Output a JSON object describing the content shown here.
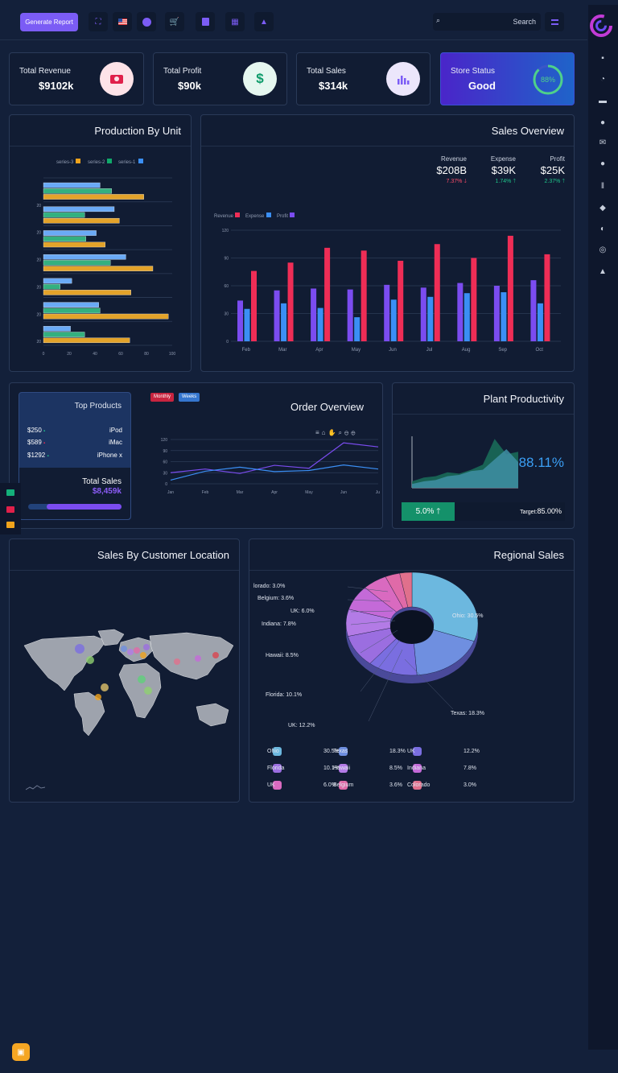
{
  "topbar": {
    "generate_label": "Generate Report",
    "search_placeholder": "Search",
    "icons": [
      "fullscreen-icon",
      "us-flag-icon",
      "chat-icon",
      "cart-icon",
      "file-icon",
      "apps-icon",
      "bell-icon"
    ]
  },
  "sidebar_icons": [
    "dashboard-icon",
    "pie-icon",
    "wallet-icon",
    "user-icon",
    "mail-icon",
    "group-icon",
    "library-icon",
    "box-icon",
    "rocket-icon",
    "lock-icon",
    "alert-icon"
  ],
  "stats": [
    {
      "label": "Total Revenue",
      "value": "$9102k",
      "icon": "camera-icon"
    },
    {
      "label": "Total Profit",
      "value": "$90k",
      "icon": "dollar-icon",
      "glyph": "$"
    },
    {
      "label": "Total Sales",
      "value": "$314k",
      "icon": "bar-chart-icon"
    },
    {
      "label": "Store Status",
      "value": "Good",
      "progress_label": "88%",
      "progress": 0.88
    }
  ],
  "production": {
    "title": "Production By Unit",
    "legend": [
      "series-3",
      "series-2",
      "series-1"
    ],
    "y_labels": [
      "20",
      "20",
      "20",
      "20",
      "20",
      "20"
    ]
  },
  "overview": {
    "title": "Sales Overview",
    "metrics": [
      {
        "label": "Revenue",
        "value": "$208B",
        "change": "7.37%",
        "dir": "down"
      },
      {
        "label": "Expense",
        "value": "$39K",
        "change": "1.74%",
        "dir": "up"
      },
      {
        "label": "Profit",
        "value": "$25K",
        "change": "2.37%",
        "dir": "up"
      }
    ],
    "legend": [
      "Revenue",
      "Expense",
      "Profit"
    ]
  },
  "top_products": {
    "title": "Top Products",
    "items": [
      {
        "price": "$250",
        "name": "iPod"
      },
      {
        "price": "$589",
        "name": "iMac"
      },
      {
        "price": "$1292",
        "name": "iPhone x"
      }
    ],
    "total_label": "Total Sales",
    "total_value": "$8,459k",
    "progress": 0.6
  },
  "order_overview": {
    "title": "Order Overview",
    "tabs": [
      "Monthly",
      "Weeks"
    ]
  },
  "plant": {
    "title": "Plant Productivity",
    "value": "88.11%",
    "badge": "5.0%",
    "target_label": "Target:",
    "target_value": "85.00%"
  },
  "location": {
    "title": "Sales By Customer Location"
  },
  "regional": {
    "title": "Regional Sales",
    "labels": [
      {
        "text": "lorado: 3.0%"
      },
      {
        "text": "Belgium: 3.6%"
      },
      {
        "text": "UK: 6.0%"
      },
      {
        "text": "Indiana: 7.8%"
      },
      {
        "text": "Hawaii: 8.5%"
      },
      {
        "text": "Florida: 10.1%"
      },
      {
        "text": "UK: 12.2%"
      },
      {
        "text": "Texas: 18.3%"
      },
      {
        "text": "Ohio: 30.5%"
      }
    ],
    "legend": [
      {
        "name": "Ohio",
        "value": "30.5%",
        "color": "#6cb8df"
      },
      {
        "name": "Texas",
        "value": "18.3%",
        "color": "#6f8fe0"
      },
      {
        "name": "UK",
        "value": "12.2%",
        "color": "#7a6ee0"
      },
      {
        "name": "Florida",
        "value": "10.1%",
        "color": "#9b6ee0"
      },
      {
        "name": "Hawaii",
        "value": "8.5%",
        "color": "#b37be6"
      },
      {
        "name": "Indiana",
        "value": "7.8%",
        "color": "#c46ad8"
      },
      {
        "name": "UK",
        "value": "6.0%",
        "color": "#d96ac0"
      },
      {
        "name": "Belgium",
        "value": "3.6%",
        "color": "#e06aa8"
      },
      {
        "name": "Colorado",
        "value": "3.0%",
        "color": "#e0708c"
      }
    ]
  },
  "chart_data": [
    {
      "type": "bar",
      "orientation": "horizontal",
      "series": [
        {
          "name": "series-1",
          "values": [
            44,
            55,
            41,
            64,
            22,
            43,
            21
          ]
        },
        {
          "name": "series-2",
          "values": [
            53,
            32,
            33,
            52,
            13,
            44,
            32
          ]
        },
        {
          "name": "series-3",
          "values": [
            78,
            59,
            48,
            85,
            68,
            97,
            67
          ]
        }
      ],
      "xlim": [
        0,
        100
      ],
      "x_ticks": [
        "0",
        "20",
        "40",
        "60",
        "80",
        "100"
      ],
      "title": "Production By Unit"
    },
    {
      "type": "bar",
      "categories": [
        "Feb",
        "Mar",
        "Apr",
        "May",
        "Jun",
        "Jul",
        "Aug",
        "Sep",
        "Oct"
      ],
      "series": [
        {
          "name": "Profit",
          "values": [
            44,
            55,
            57,
            56,
            61,
            58,
            63,
            60,
            66
          ]
        },
        {
          "name": "Expense",
          "values": [
            35,
            41,
            36,
            26,
            45,
            48,
            52,
            53,
            41
          ]
        },
        {
          "name": "Revenue",
          "values": [
            76,
            85,
            101,
            98,
            87,
            105,
            90,
            114,
            94
          ]
        }
      ],
      "ylim": [
        0,
        120
      ],
      "y_ticks": [
        "0",
        "30",
        "60",
        "90",
        "120"
      ],
      "title": "Sales Overview"
    },
    {
      "type": "line",
      "categories": [
        "Jan",
        "Feb",
        "Mar",
        "Apr",
        "May",
        "Jun",
        "Jul"
      ],
      "series": [
        {
          "name": "series-a",
          "values": [
            30,
            40,
            28,
            50,
            42,
            111,
            100
          ]
        },
        {
          "name": "series-b",
          "values": [
            10,
            34,
            45,
            33,
            36,
            51,
            40
          ]
        }
      ],
      "ylim": [
        0,
        120
      ],
      "y_ticks": [
        "0",
        "30",
        "60",
        "90",
        "120"
      ],
      "title": "Order Overview"
    },
    {
      "type": "area",
      "series": [
        {
          "name": "dark",
          "values": [
            5,
            8,
            9,
            12,
            11,
            14,
            18,
            38,
            26,
            28
          ]
        },
        {
          "name": "light",
          "values": [
            3,
            5,
            6,
            9,
            10,
            13,
            14,
            22,
            30,
            20
          ]
        }
      ],
      "ylim": [
        0,
        40
      ],
      "title": "Plant Productivity"
    },
    {
      "type": "pie",
      "slices": [
        {
          "name": "Ohio",
          "value": 30.5
        },
        {
          "name": "Texas",
          "value": 18.3
        },
        {
          "name": "UK",
          "value": 12.2
        },
        {
          "name": "Florida",
          "value": 10.1
        },
        {
          "name": "Hawaii",
          "value": 8.5
        },
        {
          "name": "Indiana",
          "value": 7.8
        },
        {
          "name": "UK",
          "value": 6.0
        },
        {
          "name": "Belgium",
          "value": 3.6
        },
        {
          "name": "Colorado",
          "value": 3.0
        }
      ],
      "title": "Regional Sales"
    }
  ]
}
